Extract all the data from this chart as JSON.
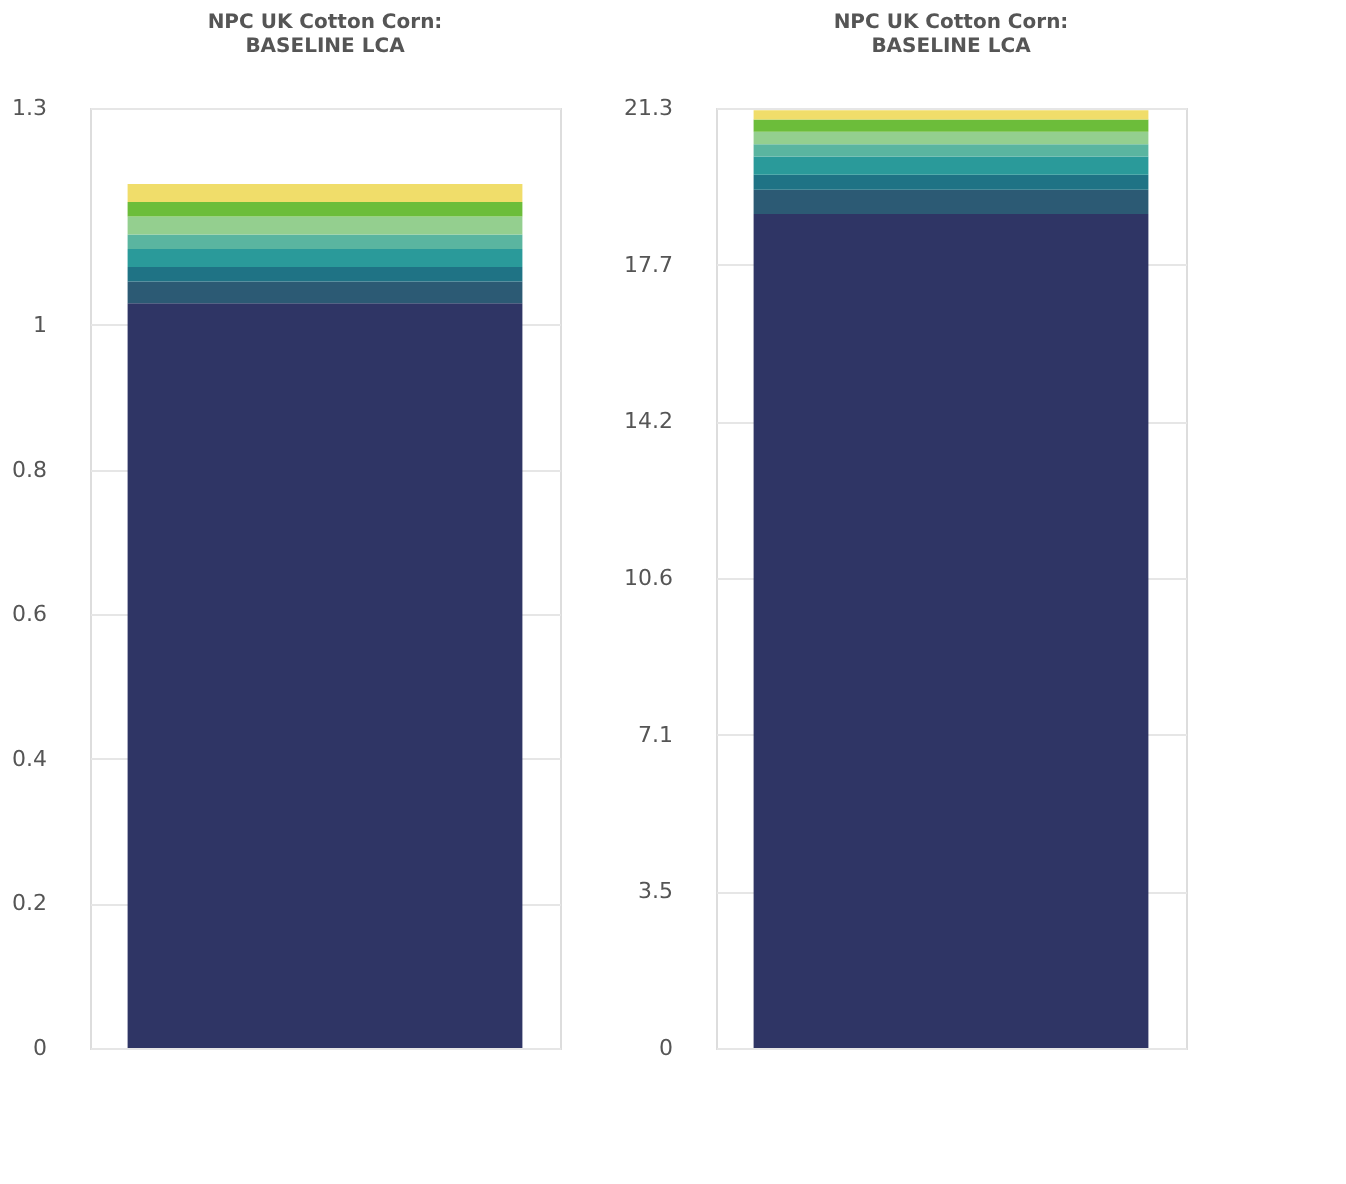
{
  "chart_data": [
    {
      "type": "bar",
      "title": [
        "NPC UK Cotton   Corn:",
        "BASELINE LCA"
      ],
      "categories": [
        null
      ],
      "stacked": true,
      "grid": "y",
      "tick_labels": "y",
      "ylim": [
        0,
        1.3
      ],
      "yticks": [
        0,
        0.2,
        0.4,
        0.6,
        0.8,
        1,
        1.3
      ],
      "series": [
        {
          "color": "#2f3565",
          "values": [
            1.03
          ]
        },
        {
          "color": "#2c5a74",
          "values": [
            0.03
          ]
        },
        {
          "color": "#1f7385",
          "values": [
            0.02
          ]
        },
        {
          "color": "#2a9a9a",
          "values": [
            0.025
          ]
        },
        {
          "color": "#5ab5a0",
          "values": [
            0.02
          ]
        },
        {
          "color": "#94cf8f",
          "values": [
            0.025
          ]
        },
        {
          "color": "#6cbd3a",
          "values": [
            0.02
          ]
        },
        {
          "color": "#f0dd6a",
          "values": [
            0.025
          ]
        }
      ]
    },
    {
      "type": "bar",
      "title": [
        "NPC UK Cotton   Corn:",
        "BASELINE LCA"
      ],
      "categories": [
        null
      ],
      "stacked": true,
      "grid": "y",
      "tick_labels": "y",
      "ylim": [
        0,
        21.3
      ],
      "yticks": [
        0,
        {
          "value": 3.55,
          "label": "3.5"
        },
        7.1,
        {
          "value": 10.65,
          "label": "10.6"
        },
        14.2,
        {
          "value": 17.75,
          "label": "17.7"
        },
        21.3
      ],
      "series": [
        {
          "color": "#2f3565",
          "values": [
            18.9
          ]
        },
        {
          "color": "#2c5a74",
          "values": [
            0.55
          ]
        },
        {
          "color": "#1f7385",
          "values": [
            0.34
          ]
        },
        {
          "color": "#2a9a9a",
          "values": [
            0.41
          ]
        },
        {
          "color": "#5ab5a0",
          "values": [
            0.28
          ]
        },
        {
          "color": "#94cf8f",
          "values": [
            0.28
          ]
        },
        {
          "color": "#6cbd3a",
          "values": [
            0.28
          ]
        },
        {
          "color": "#f0dd6a",
          "values": [
            0.21
          ]
        }
      ]
    }
  ]
}
